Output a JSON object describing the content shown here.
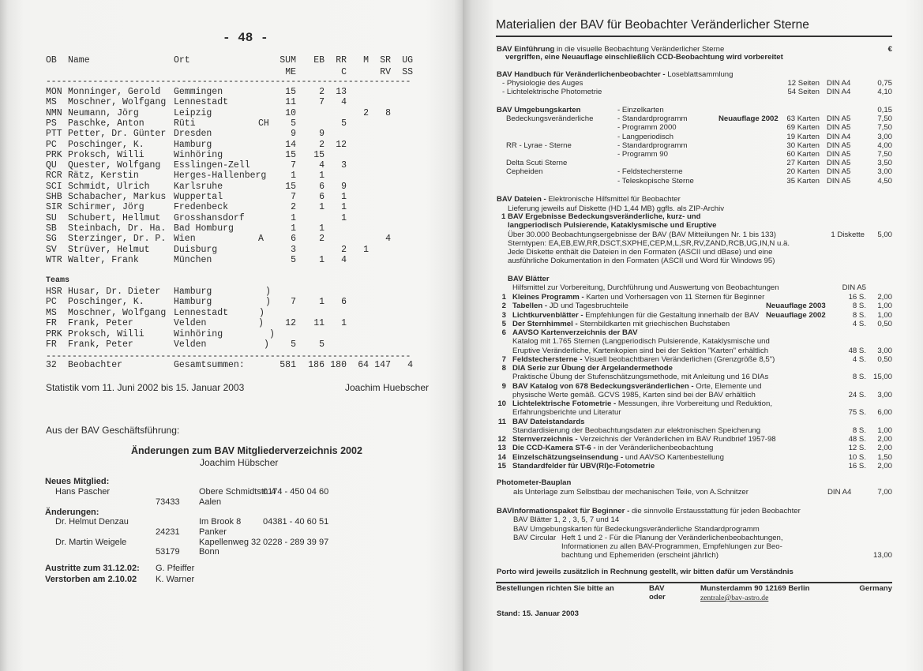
{
  "left_page": {
    "page_number": "- 48 -",
    "headers": {
      "ob": "OB",
      "name": "Name",
      "ort": "Ort",
      "sum": "SUM",
      "sum2": "ME",
      "eb": "EB",
      "rr": "RR",
      "rr2": "C",
      "m": "M",
      "sr": "SR",
      "sr2": "RV",
      "ug": "UG",
      "ug2": "SS"
    },
    "dashes": "----------------------------------------------------------------------",
    "observers": [
      {
        "ob": "MON",
        "name": "Monninger, Gerold",
        "ort": "Gemmingen",
        "land": "",
        "sum": "15",
        "eb": "2",
        "rr": "13",
        "m": "",
        "sr": "",
        "ug": ""
      },
      {
        "ob": "MS",
        "name": "Moschner, Wolfgang",
        "ort": "Lennestadt",
        "land": "",
        "sum": "11",
        "eb": "7",
        "rr": "4",
        "m": "",
        "sr": "",
        "ug": ""
      },
      {
        "ob": "NMN",
        "name": "Neumann, Jörg",
        "ort": "Leipzig",
        "land": "",
        "sum": "10",
        "eb": "",
        "rr": "",
        "m": "2",
        "sr": "8",
        "ug": ""
      },
      {
        "ob": "PS",
        "name": "Paschke, Anton",
        "ort": "Rüti",
        "land": "CH",
        "sum": "5",
        "eb": "",
        "rr": "5",
        "m": "",
        "sr": "",
        "ug": ""
      },
      {
        "ob": "PTT",
        "name": "Petter, Dr. Günter",
        "ort": "Dresden",
        "land": "",
        "sum": "9",
        "eb": "9",
        "rr": "",
        "m": "",
        "sr": "",
        "ug": ""
      },
      {
        "ob": "PC",
        "name": "Poschinger, K.",
        "ort": "Hamburg",
        "land": "",
        "sum": "14",
        "eb": "2",
        "rr": "12",
        "m": "",
        "sr": "",
        "ug": ""
      },
      {
        "ob": "PRK",
        "name": "Proksch, Willi",
        "ort": "Winhöring",
        "land": "",
        "sum": "15",
        "eb": "15",
        "rr": "",
        "m": "",
        "sr": "",
        "ug": ""
      },
      {
        "ob": "QU",
        "name": "Quester, Wolfgang",
        "ort": "Esslingen-Zell",
        "land": "",
        "sum": "7",
        "eb": "4",
        "rr": "3",
        "m": "",
        "sr": "",
        "ug": ""
      },
      {
        "ob": "RCR",
        "name": "Rätz, Kerstin",
        "ort": "Herges-Hallenberg",
        "land": "",
        "sum": "1",
        "eb": "1",
        "rr": "",
        "m": "",
        "sr": "",
        "ug": ""
      },
      {
        "ob": "SCI",
        "name": "Schmidt, Ulrich",
        "ort": "Karlsruhe",
        "land": "",
        "sum": "15",
        "eb": "6",
        "rr": "9",
        "m": "",
        "sr": "",
        "ug": ""
      },
      {
        "ob": "SHB",
        "name": "Schabacher, Markus",
        "ort": "Wuppertal",
        "land": "",
        "sum": "7",
        "eb": "6",
        "rr": "1",
        "m": "",
        "sr": "",
        "ug": ""
      },
      {
        "ob": "SIR",
        "name": "Schirmer, Jörg",
        "ort": "Fredenbeck",
        "land": "",
        "sum": "2",
        "eb": "1",
        "rr": "1",
        "m": "",
        "sr": "",
        "ug": ""
      },
      {
        "ob": "SU",
        "name": "Schubert, Hellmut",
        "ort": "Grosshansdorf",
        "land": "",
        "sum": "1",
        "eb": "",
        "rr": "1",
        "m": "",
        "sr": "",
        "ug": ""
      },
      {
        "ob": "SB",
        "name": "Steinbach, Dr. Ha.",
        "ort": "Bad Homburg",
        "land": "",
        "sum": "1",
        "eb": "1",
        "rr": "",
        "m": "",
        "sr": "",
        "ug": ""
      },
      {
        "ob": "SG",
        "name": "Sterzinger, Dr. P.",
        "ort": "Wien",
        "land": "A",
        "sum": "6",
        "eb": "2",
        "rr": "",
        "m": "",
        "sr": "4",
        "ug": ""
      },
      {
        "ob": "SV",
        "name": "Strüver, Helmut",
        "ort": "Duisburg",
        "land": "",
        "sum": "3",
        "eb": "",
        "rr": "2",
        "m": "1",
        "sr": "",
        "ug": ""
      },
      {
        "ob": "WTR",
        "name": "Walter, Frank",
        "ort": "München",
        "land": "",
        "sum": "5",
        "eb": "1",
        "rr": "4",
        "m": "",
        "sr": "",
        "ug": ""
      }
    ],
    "teams_label": "Teams",
    "teams": [
      {
        "ob": "HSR",
        "name": "Husar, Dr. Dieter",
        "ort": "Hamburg",
        "bracket": ")",
        "sum": "",
        "eb": "",
        "rr": ""
      },
      {
        "ob": "PC",
        "name": "Poschinger, K.",
        "ort": "Hamburg",
        "bracket": ")",
        "sum": "7",
        "eb": "1",
        "rr": "6"
      },
      {
        "ob": "MS",
        "name": "Moschner, Wolfgang",
        "ort": "Lennestadt",
        "bracket": ")",
        "sum": "",
        "eb": "",
        "rr": ""
      },
      {
        "ob": "FR",
        "name": "Frank, Peter",
        "ort": "Velden",
        "bracket": ")",
        "sum": "12",
        "eb": "11",
        "rr": "1"
      },
      {
        "ob": "PRK",
        "name": "Proksch, Willi",
        "ort": "Winhöring",
        "bracket": ")",
        "sum": "",
        "eb": "",
        "rr": ""
      },
      {
        "ob": "FR",
        "name": "Frank, Peter",
        "ort": "Velden",
        "bracket": ")",
        "sum": "5",
        "eb": "5",
        "rr": ""
      }
    ],
    "totals": {
      "count": "32",
      "label": "Beobachter",
      "sum_label": "Gesamtsummen:",
      "sum": "581",
      "eb": "186",
      "rr": "180",
      "m": "64",
      "sr": "147",
      "ug": "4"
    },
    "statistik": "Statistik vom  11. Juni 2002  bis  15. Januar 2003",
    "author": "Joachim Huebscher",
    "gf": {
      "heading": "Aus der BAV Geschäftsführung:",
      "title": "Änderungen zum BAV Mitgliederverzeichnis 2002",
      "title_author": "Joachim Hübscher",
      "new_label": "Neues Mitglied:",
      "new_name": "Hans Pascher",
      "new_street": "Obere Schmidtstr. 4",
      "new_phone": "0174 - 450 04 60",
      "new_zip": "73433",
      "new_city": "Aalen",
      "changes_label": "Änderungen:",
      "c1_name": "Dr. Helmut Denzau",
      "c1_street": "Im Brook 8",
      "c1_phone": "04381 - 40 60 51",
      "c1_zip": "24231",
      "c1_city": "Panker",
      "c2_name": "Dr. Martin Weigele",
      "c2_street": "Kapellenweg 32",
      "c2_phone": "0228 - 289 39 97",
      "c2_zip": "53179",
      "c2_city": "Bonn",
      "austritte_label": "Austritte zum 31.12.02:",
      "austritte_name": "G. Pfeiffer",
      "verstorben_label": "Verstorben am 2.10.02",
      "verstorben_name": "K. Warner"
    }
  },
  "right_page": {
    "title": "Materialien der  BAV  für Beobachter Veränderlicher Sterne",
    "currency": "€",
    "einf_bold": "BAV Einführung",
    "einf_rest": " in die visuelle Beobachtung Veränderlicher Sterne",
    "einf_note": "vergriffen, eine Neuauflage einschließlich CCD-Beobachtung wird vorbereitet",
    "hb_bold": "BAV Handbuch für Veränderlichenbeobachter - ",
    "hb_rest": "Loseblattsammlung",
    "hb_items": [
      {
        "label": "- Physiologie des Auges",
        "count": "12 Seiten",
        "format": "DIN A4",
        "price": "0,75"
      },
      {
        "label": "- Lichtelektrische Photometrie",
        "count": "54 Seiten",
        "format": "DIN A4",
        "price": "4,10"
      }
    ],
    "ug_title": "BAV Umgebungskarten",
    "ug_groups": [
      "Bedeckungsveränderliche",
      "RR - Lyrae - Sterne",
      "Delta Scuti Sterne",
      "Cepheiden"
    ],
    "ug_note": "Neuauflage 2002",
    "ug_items": [
      {
        "label": "- Einzelkarten",
        "count": "",
        "format": "",
        "price": "0,15"
      },
      {
        "label": "- Standardprogramm",
        "count": "63 Karten",
        "format": "DIN A5",
        "price": "7,50"
      },
      {
        "label": "- Programm 2000",
        "count": "69 Karten",
        "format": "DIN A5",
        "price": "7,50"
      },
      {
        "label": "- Langperiodisch",
        "count": "19 Karten",
        "format": "DIN A4",
        "price": "3,00"
      },
      {
        "label": "- Standardprogramm",
        "count": "30 Karten",
        "format": "DIN A5",
        "price": "4,00"
      },
      {
        "label": "- Programm 90",
        "count": "60 Karten",
        "format": "DIN A5",
        "price": "7,50"
      },
      {
        "label": "",
        "count": "27 Karten",
        "format": "DIN A5",
        "price": "3,50"
      },
      {
        "label": "- Feldstechersterne",
        "count": "20 Karten",
        "format": "DIN A5",
        "price": "3,00"
      },
      {
        "label": "- Teleskopische Sterne",
        "count": "35 Karten",
        "format": "DIN A5",
        "price": "4,50"
      }
    ],
    "dat_bold": "BAV Dateien - ",
    "dat_rest": "Elektronische Hilfsmittel für Beobachter",
    "dat_delivery": "Lieferung jeweils auf Diskette (HD 1,44 MB) ggfls. als ZIP-Archiv",
    "dat_num": "1",
    "dat_item1": "BAV Ergebnisse   Bedeckungsveränderliche, kurz- und",
    "dat_item2": "langperiodisch Pulsierende, Kataklysmische und Eruptive",
    "dat_lines": [
      "Über 30.000 Beobachtungsergebnisse der BAV (BAV Mitteilungen Nr. 1 bis 133)",
      "Sterntypen: EA,EB,EW,RR,DSCT,SXPHE,CEP,M,L,SR,RV,ZAND,RCB,UG,IN,N u.ä.",
      "Jede Diskette enthält die Dateien in den Formaten (ASCII und dBase) und eine",
      "ausführliche Dokumentation in den Formaten (ASCII und Word für Windows 95)"
    ],
    "dat_count": "1 Diskette",
    "dat_price": "5,00",
    "bl_title": "BAV Blätter",
    "bl_sub": "Hilfsmittel zur Vorbereitung, Durchführung und Auswertung von Beobachtungen",
    "bl_format": "DIN A5",
    "bl_items": [
      {
        "num": "1",
        "bold": "Kleines Programm - ",
        "rest": "Karten und Vorhersagen von 11 Sternen für Beginner",
        "note": "",
        "pages": "16 S.",
        "price": "2,00"
      },
      {
        "num": "2",
        "bold": "Tabellen - ",
        "rest": "JD und Tagesbruchteile",
        "note": "Neuauflage 2003",
        "pages": "8 S.",
        "price": "1,00"
      },
      {
        "num": "3",
        "bold": "Lichtkurvenblätter - ",
        "rest": "Empfehlungen für die Gestaltung innerhalb der BAV",
        "note": "Neuauflage 2002",
        "pages": "8 S.",
        "price": "1,00"
      },
      {
        "num": "5",
        "bold": "Der Sternhimmel - ",
        "rest": "Sternbildkarten mit griechischen Buchstaben",
        "note": "",
        "pages": "4 S.",
        "price": "0,50"
      },
      {
        "num": "6",
        "bold": "AAVSO Kartenverzeichnis der BAV",
        "rest": "",
        "note": "",
        "pages": "",
        "price": ""
      },
      {
        "num": "",
        "bold": "",
        "rest": "Katalog mit 1.765 Sternen (Langperiodisch Pulsierende, Kataklysmische und",
        "note": "",
        "pages": "",
        "price": ""
      },
      {
        "num": "",
        "bold": "",
        "rest": "Eruptive Veränderliche, Kartenkopien sind bei der Sektion \"Karten\" erhältlich",
        "note": "",
        "pages": "48 S.",
        "price": "3,00"
      },
      {
        "num": "7",
        "bold": "Feldstechersterne - ",
        "rest": "Visuell beobachtbaren Veränderlichen (Grenzgröße 8,5\")",
        "note": "",
        "pages": "4 S.",
        "price": "0,50"
      },
      {
        "num": "8",
        "bold": "DIA Serie zur Übung der Argelandermethode",
        "rest": "",
        "note": "",
        "pages": "",
        "price": ""
      },
      {
        "num": "",
        "bold": "",
        "rest": "Praktische Übung der Stufenschätzungsmethode, mit Anleitung und 16 DIAs",
        "note": "",
        "pages": "8 S.",
        "price": "15,00"
      },
      {
        "num": "9",
        "bold": "BAV Katalog von 678 Bedeckungsveränderlichen - ",
        "rest": "Orte, Elemente und",
        "note": "",
        "pages": "",
        "price": ""
      },
      {
        "num": "",
        "bold": "",
        "rest": "physische Werte gemäß. GCVS 1985, Karten sind bei der BAV erhältlich",
        "note": "",
        "pages": "24 S.",
        "price": "3,00"
      },
      {
        "num": "10",
        "bold": "Lichtelektrische Fotometrie - ",
        "rest": "Messungen, ihre Vorbereitung und Reduktion,",
        "note": "",
        "pages": "",
        "price": ""
      },
      {
        "num": "",
        "bold": "",
        "rest": "Erfahrungsberichte und Literatur",
        "note": "",
        "pages": "75 S.",
        "price": "6,00"
      },
      {
        "num": "11",
        "bold": "BAV Dateistandards",
        "rest": "",
        "note": "",
        "pages": "",
        "price": ""
      },
      {
        "num": "",
        "bold": "",
        "rest": "Standardisierung der Beobachtungsdaten zur elektronischen Speicherung",
        "note": "",
        "pages": "8 S.",
        "price": "1,00"
      },
      {
        "num": "12",
        "bold": "Sternverzeichnis - ",
        "rest": "Verzeichnis der Veränderlichen im BAV Rundbrief 1957-98",
        "note": "",
        "pages": "48 S.",
        "price": "2,00"
      },
      {
        "num": "13",
        "bold": "Die CCD-Kamera ST-6 - ",
        "rest": "in der Veränderlichenbeobachtung",
        "note": "",
        "pages": "12 S.",
        "price": "2,00"
      },
      {
        "num": "14",
        "bold": "Einzelschätzungseinsendung - ",
        "rest": "und AAVSO Kartenbestellung",
        "note": "",
        "pages": "10 S.",
        "price": "1,50"
      },
      {
        "num": "15",
        "bold": "Standardfelder für UBV(RI)c-Fotometrie",
        "rest": "",
        "note": "",
        "pages": "16 S.",
        "price": "2,00"
      }
    ],
    "ph_title": "Photometer-Bauplan",
    "ph_text": "als Unterlage zum Selbstbau der mechanischen Teile, von A.Schnitzer",
    "ph_format": "DIN A4",
    "ph_price": "7,00",
    "ip_bold": "BAVInformationspaket für Beginner - ",
    "ip_rest": "die sinnvolle Erstausstattung für jeden Beobachter",
    "ip_line1": "BAV Blätter  1, 2 , 3, 5, 7 und 14",
    "ip_line2": "BAV Umgebungskarten für Bedeckungsveränderliche Standardprogramm",
    "ip_circ_label": "BAV Circular",
    "ip_circ": [
      "Heft 1 und 2 - Für die Planung der Veränderlichenbeobachtungen,",
      "Informationen zu allen BAV-Programmen, Empfehlungen zur Beo-",
      "bachtung und Ephemeriden (erscheint jährlich)"
    ],
    "ip_price": "13,00",
    "porto": "Porto wird jeweils zusätzlich in Rechnung gestellt, wir bitten dafür um Verständnis",
    "order_label": "Bestellungen richten Sie bitte an",
    "order_org": "BAV",
    "order_or": "oder",
    "order_street": "Munsterdamm 90",
    "order_city": "12169 Berlin",
    "order_country": "Germany",
    "order_email": "zentrale@bav-astro.de",
    "stand": "Stand: 15. Januar 2003"
  }
}
